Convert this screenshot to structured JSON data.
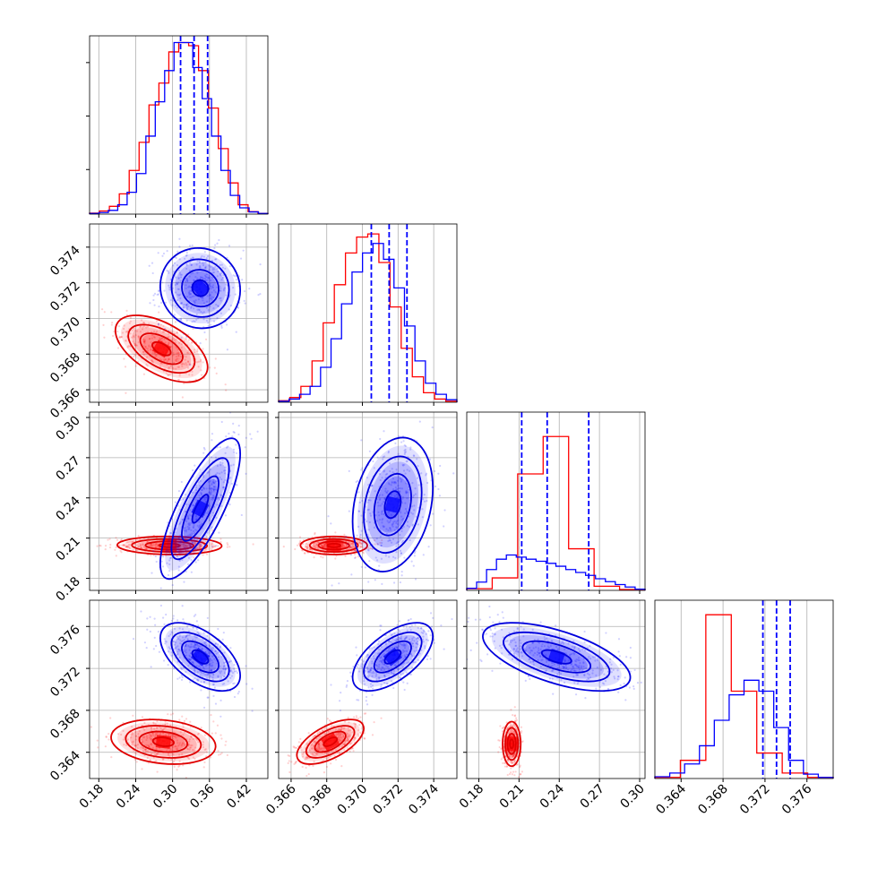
{
  "chart_data": {
    "type": "corner",
    "grid": true,
    "series": [
      {
        "name": "",
        "color": "#ff0000",
        "contour_color": "#e00000"
      },
      {
        "name": "",
        "color": "#0000ff",
        "contour_color": "#0000dd"
      }
    ],
    "quantiles_series": 1,
    "params": [
      {
        "range": [
          0.165,
          0.455
        ],
        "ticks": [
          0.18,
          0.24,
          0.3,
          0.36,
          0.42
        ],
        "tick_labels": [
          "0.18",
          "0.24",
          "0.30",
          "0.36",
          "0.42"
        ],
        "quantiles": [
          0.313,
          0.335,
          0.357
        ],
        "hist": [
          {
            "series": 0,
            "counts": [
              0.3,
              1,
              2.5,
              6.5,
              14,
              23,
              35,
              42,
              52,
              55,
              54,
              46,
              34,
              21,
              10,
              3,
              0.8,
              0.2
            ]
          },
          {
            "series": 1,
            "counts": [
              0.2,
              0.5,
              1.2,
              3,
              7,
              13,
              25,
              36,
              46,
              55,
              55,
              47,
              37,
              25,
              14,
              6,
              2,
              0.7,
              0.2
            ]
          }
        ],
        "hist_max": 56
      },
      {
        "range": [
          0.3653,
          0.3753
        ],
        "ticks": [
          0.366,
          0.368,
          0.37,
          0.372,
          0.374
        ],
        "tick_labels": [
          "0.366",
          "0.368",
          "0.370",
          "0.372",
          "0.374"
        ],
        "quantiles": [
          0.3705,
          0.3715,
          0.3725
        ],
        "hist": [
          {
            "series": 0,
            "counts": [
              0.5,
              1.5,
              5,
              13,
              25,
              37,
              47,
              52,
              53,
              44,
              30,
              17,
              8,
              3,
              1,
              0.3
            ]
          },
          {
            "series": 1,
            "counts": [
              0.3,
              1,
              2.5,
              5,
              11,
              20,
              31,
              41,
              47,
              50,
              45,
              36,
              24,
              13,
              6,
              2.5,
              0.8
            ]
          }
        ],
        "hist_max": 55
      },
      {
        "range": [
          0.171,
          0.304
        ],
        "ticks": [
          0.18,
          0.21,
          0.24,
          0.27,
          0.3
        ],
        "tick_labels": [
          "0.18",
          "0.21",
          "0.24",
          "0.27",
          "0.30"
        ],
        "quantiles": [
          0.212,
          0.231,
          0.262
        ],
        "hist": [
          {
            "series": 0,
            "counts": [
              0.4,
              3,
              28,
              37,
              10,
              1,
              0.2
            ]
          },
          {
            "series": 1,
            "counts": [
              0.5,
              2,
              5,
              7.5,
              8.5,
              8,
              7.5,
              7,
              6.5,
              5.8,
              5,
              4.3,
              3.6,
              2.8,
              2.1,
              1.4,
              0.8,
              0.3
            ]
          }
        ],
        "hist_max": 42
      },
      {
        "range": [
          0.3615,
          0.3785
        ],
        "ticks": [
          0.364,
          0.368,
          0.372,
          0.376
        ],
        "tick_labels": [
          "0.364",
          "0.368",
          "0.372",
          "0.376"
        ],
        "quantiles": [
          0.3718,
          0.3731,
          0.3744
        ],
        "hist": [
          {
            "series": 0,
            "counts": [
              0.3,
              5,
              45,
              24,
              7,
              1.5,
              0.3
            ]
          },
          {
            "series": 1,
            "counts": [
              0.5,
              1.5,
              4,
              9,
              16,
              23,
              27,
              24,
              14,
              5,
              1.2,
              0.3
            ]
          }
        ],
        "hist_max": 48
      }
    ],
    "joint": [
      {
        "row": 1,
        "col": 0,
        "blobs": [
          {
            "series": 0,
            "mean": [
              0.282,
              0.3683
            ],
            "sd": [
              0.03,
              0.00075
            ],
            "rho": -0.55
          },
          {
            "series": 1,
            "mean": [
              0.345,
              0.3717
            ],
            "sd": [
              0.026,
              0.0009
            ],
            "rho": -0.05
          }
        ]
      },
      {
        "row": 2,
        "col": 0,
        "blobs": [
          {
            "series": 0,
            "mean": [
              0.295,
              0.2045
            ],
            "sd": [
              0.034,
              0.0027
            ],
            "rho": -0.05
          },
          {
            "series": 1,
            "mean": [
              0.345,
              0.232
            ],
            "sd": [
              0.026,
              0.021
            ],
            "rho": 0.78
          }
        ]
      },
      {
        "row": 2,
        "col": 1,
        "blobs": [
          {
            "series": 0,
            "mean": [
              0.3684,
              0.2045
            ],
            "sd": [
              0.00075,
              0.0027
            ],
            "rho": 0.0
          },
          {
            "series": 1,
            "mean": [
              0.3717,
              0.235
            ],
            "sd": [
              0.0009,
              0.02
            ],
            "rho": 0.25
          }
        ]
      },
      {
        "row": 3,
        "col": 0,
        "blobs": [
          {
            "series": 0,
            "mean": [
              0.285,
              0.365
            ],
            "sd": [
              0.034,
              0.00085
            ],
            "rho": -0.2
          },
          {
            "series": 1,
            "mean": [
              0.345,
              0.3731
            ],
            "sd": [
              0.026,
              0.0013
            ],
            "rho": -0.55
          }
        ]
      },
      {
        "row": 3,
        "col": 1,
        "blobs": [
          {
            "series": 0,
            "mean": [
              0.3682,
              0.365
            ],
            "sd": [
              0.00075,
              0.00085
            ],
            "rho": 0.6
          },
          {
            "series": 1,
            "mean": [
              0.3717,
              0.3731
            ],
            "sd": [
              0.0009,
              0.0013
            ],
            "rho": 0.6
          }
        ]
      },
      {
        "row": 3,
        "col": 2,
        "blobs": [
          {
            "series": 0,
            "mean": [
              0.2045,
              0.3648
            ],
            "sd": [
              0.0027,
              0.00085
            ],
            "rho": 0.0
          },
          {
            "series": 1,
            "mean": [
              0.238,
              0.3731
            ],
            "sd": [
              0.022,
              0.0013
            ],
            "rho": -0.6
          }
        ]
      }
    ]
  }
}
